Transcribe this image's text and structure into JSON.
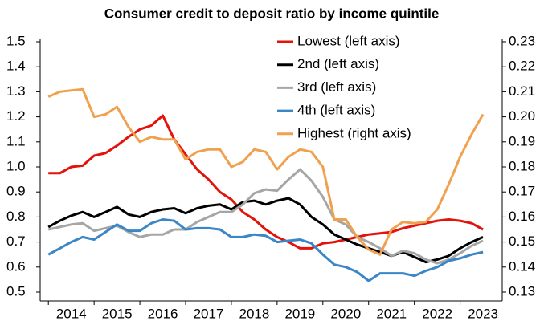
{
  "chart_data": {
    "type": "line",
    "title": "Consumer credit to deposit ratio by income quintile",
    "x": [
      2014,
      2014.25,
      2014.5,
      2014.75,
      2015,
      2015.25,
      2015.5,
      2015.75,
      2016,
      2016.25,
      2016.5,
      2016.75,
      2017,
      2017.25,
      2017.5,
      2017.75,
      2018,
      2018.25,
      2018.5,
      2018.75,
      2019,
      2019.25,
      2019.5,
      2019.75,
      2020,
      2020.25,
      2020.5,
      2020.75,
      2021,
      2021.25,
      2021.5,
      2021.75,
      2022,
      2022.25,
      2022.5,
      2022.75,
      2023,
      2023.25,
      2023.5
    ],
    "series": [
      {
        "name": "Lowest (left axis)",
        "color": "#e3120b",
        "values": [
          0.975,
          0.975,
          1.0,
          1.005,
          1.045,
          1.055,
          1.085,
          1.12,
          1.15,
          1.165,
          1.205,
          1.11,
          1.05,
          0.99,
          0.95,
          0.9,
          0.87,
          0.82,
          0.79,
          0.75,
          0.72,
          0.7,
          0.675,
          0.675,
          0.695,
          0.7,
          0.71,
          0.72,
          0.73,
          0.735,
          0.74,
          0.755,
          0.765,
          0.775,
          0.785,
          0.79,
          0.785,
          0.775,
          0.75
        ]
      },
      {
        "name": "2nd (left axis)",
        "color": "#000000",
        "values": [
          0.76,
          0.785,
          0.805,
          0.82,
          0.8,
          0.82,
          0.84,
          0.81,
          0.8,
          0.82,
          0.83,
          0.835,
          0.815,
          0.835,
          0.845,
          0.85,
          0.83,
          0.86,
          0.865,
          0.85,
          0.865,
          0.875,
          0.85,
          0.8,
          0.77,
          0.73,
          0.71,
          0.69,
          0.675,
          0.66,
          0.645,
          0.66,
          0.64,
          0.62,
          0.63,
          0.645,
          0.675,
          0.7,
          0.72
        ]
      },
      {
        "name": "3rd (left axis)",
        "color": "#a6a6a6",
        "values": [
          0.75,
          0.76,
          0.77,
          0.775,
          0.745,
          0.755,
          0.765,
          0.74,
          0.72,
          0.73,
          0.73,
          0.75,
          0.75,
          0.78,
          0.8,
          0.82,
          0.82,
          0.85,
          0.895,
          0.91,
          0.905,
          0.95,
          0.99,
          0.945,
          0.88,
          0.79,
          0.77,
          0.72,
          0.7,
          0.675,
          0.645,
          0.665,
          0.655,
          0.63,
          0.615,
          0.63,
          0.655,
          0.685,
          0.705
        ]
      },
      {
        "name": "4th (left axis)",
        "color": "#3b86c6",
        "values": [
          0.65,
          0.675,
          0.7,
          0.72,
          0.71,
          0.74,
          0.77,
          0.745,
          0.745,
          0.775,
          0.79,
          0.785,
          0.75,
          0.755,
          0.755,
          0.75,
          0.72,
          0.72,
          0.73,
          0.725,
          0.7,
          0.705,
          0.71,
          0.695,
          0.65,
          0.61,
          0.6,
          0.58,
          0.545,
          0.575,
          0.575,
          0.575,
          0.565,
          0.585,
          0.6,
          0.625,
          0.635,
          0.65,
          0.66
        ]
      },
      {
        "name": "Highest (right axis)",
        "color": "#f0a150",
        "axis": "y2",
        "values": [
          0.208,
          0.21,
          0.2105,
          0.211,
          0.2,
          0.201,
          0.204,
          0.196,
          0.19,
          0.192,
          0.191,
          0.191,
          0.183,
          0.186,
          0.187,
          0.187,
          0.18,
          0.182,
          0.187,
          0.186,
          0.179,
          0.184,
          0.187,
          0.186,
          0.18,
          0.159,
          0.159,
          0.152,
          0.147,
          0.145,
          0.155,
          0.158,
          0.1575,
          0.158,
          0.163,
          0.173,
          0.184,
          0.193,
          0.201
        ]
      }
    ],
    "xlim": [
      2013.82,
      2023.92
    ],
    "xticks": [
      {
        "value": 2014.5,
        "label": "2014"
      },
      {
        "value": 2015.5,
        "label": "2015"
      },
      {
        "value": 2016.5,
        "label": "2016"
      },
      {
        "value": 2017.5,
        "label": "2017"
      },
      {
        "value": 2018.5,
        "label": "2018"
      },
      {
        "value": 2019.5,
        "label": "2019"
      },
      {
        "value": 2020.5,
        "label": "2020"
      },
      {
        "value": 2021.5,
        "label": "2021"
      },
      {
        "value": 2022.5,
        "label": "2022"
      },
      {
        "value": 2023.5,
        "label": "2023"
      }
    ],
    "ylim": [
      0.5,
      1.5
    ],
    "yticks": [
      0.5,
      0.6,
      0.7,
      0.8,
      0.9,
      {
        "value": 1,
        "label": "1.0"
      },
      1.1,
      1.2,
      1.3,
      1.4,
      1.5
    ],
    "y2lim": [
      0.13,
      0.23
    ],
    "y2ticks": [
      0.13,
      0.14,
      0.15,
      0.16,
      0.17,
      0.18,
      0.19,
      {
        "value": 0.2,
        "label": "0.20"
      },
      0.21,
      0.22,
      0.23
    ],
    "legend": "upper right"
  }
}
